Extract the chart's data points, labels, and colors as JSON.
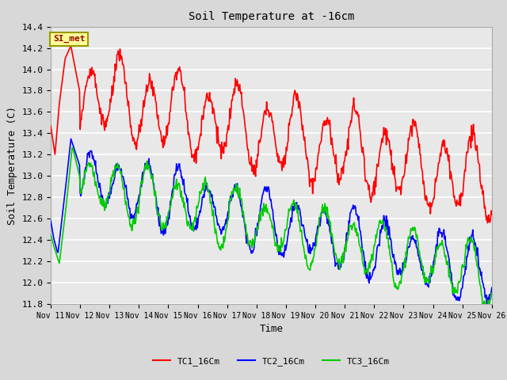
{
  "title": "Soil Temperature at -16cm",
  "xlabel": "Time",
  "ylabel": "Soil Temperature (C)",
  "ylim": [
    11.8,
    14.4
  ],
  "xlim": [
    0,
    15
  ],
  "background_color": "#d8d8d8",
  "plot_bg_color": "#e8e8e8",
  "grid_color": "white",
  "series": {
    "TC1_16Cm": {
      "color": "red",
      "lw": 1.2
    },
    "TC2_16Cm": {
      "color": "blue",
      "lw": 1.2
    },
    "TC3_16Cm": {
      "color": "#00cc00",
      "lw": 1.2
    }
  },
  "xtick_labels": [
    "Nov 11",
    "Nov 12",
    "Nov 13",
    "Nov 14",
    "Nov 15",
    "Nov 16",
    "Nov 17",
    "Nov 18",
    "Nov 19",
    "Nov 20",
    "Nov 21",
    "Nov 22",
    "Nov 23",
    "Nov 24",
    "Nov 25",
    "Nov 26"
  ],
  "ytick_labels": [
    "11.8",
    "12.0",
    "12.2",
    "12.4",
    "12.6",
    "12.8",
    "13.0",
    "13.2",
    "13.4",
    "13.6",
    "13.8",
    "14.0",
    "14.2",
    "14.4"
  ],
  "annotation_text": "SI_met",
  "annotation_color": "#990000",
  "annotation_bg": "#FFFF99",
  "annotation_border": "#999900"
}
